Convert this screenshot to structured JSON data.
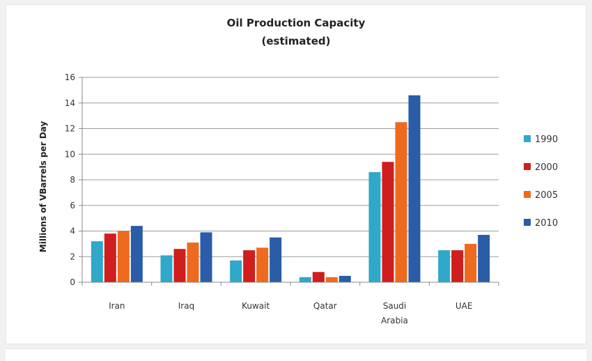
{
  "chart_data": {
    "type": "bar",
    "title": "Oil Production Capacity",
    "subtitle": "(estimated)",
    "ylabel": "Millions of VBarrels per Day",
    "xlabel": "",
    "ylim": [
      0,
      16
    ],
    "yticks": [
      0,
      2,
      4,
      6,
      8,
      10,
      12,
      14,
      16
    ],
    "grid": true,
    "legend_position": "right",
    "categories": [
      [
        "Iran"
      ],
      [
        "Iraq"
      ],
      [
        "Kuwait"
      ],
      [
        "Qatar"
      ],
      [
        "Saudi",
        "Arabia"
      ],
      [
        "UAE"
      ]
    ],
    "series": [
      {
        "name": "1990",
        "color": "#2fa8c9",
        "values": [
          3.2,
          2.1,
          1.7,
          0.4,
          8.6,
          2.5
        ]
      },
      {
        "name": "2000",
        "color": "#d01d1d",
        "values": [
          3.8,
          2.6,
          2.5,
          0.8,
          9.4,
          2.5
        ]
      },
      {
        "name": "2005",
        "color": "#ee6a1e",
        "values": [
          4.0,
          3.1,
          2.7,
          0.4,
          12.5,
          3.0
        ]
      },
      {
        "name": "2010",
        "color": "#2a5ca8",
        "values": [
          4.4,
          3.9,
          3.5,
          0.5,
          14.6,
          3.7
        ]
      }
    ]
  }
}
